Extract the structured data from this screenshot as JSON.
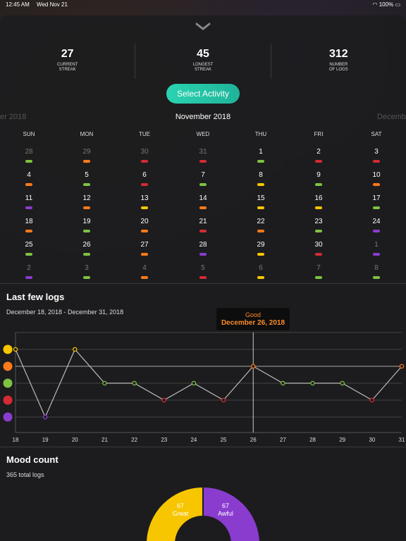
{
  "status_bar": {
    "time": "12:45 AM",
    "date": "Wed Nov 21",
    "battery": "100%"
  },
  "stats": [
    {
      "value": "27",
      "label": "CURRENT\nSTREAK"
    },
    {
      "value": "45",
      "label": "LONGEST\nSTREAK"
    },
    {
      "value": "312",
      "label": "NUMBER\nOF LOGS"
    }
  ],
  "select_activity": "Select Activity",
  "calendar": {
    "prev_month": "er 2018",
    "month": "November 2018",
    "next_month": "Decemb",
    "weekdays": [
      "SUN",
      "MON",
      "TUE",
      "WED",
      "THU",
      "FRI",
      "SAT"
    ],
    "weeks": [
      [
        {
          "d": "28",
          "c": "#7ec242",
          "dim": true
        },
        {
          "d": "29",
          "c": "#ff7a1a",
          "dim": true
        },
        {
          "d": "30",
          "c": "#d42a33",
          "dim": true
        },
        {
          "d": "31",
          "c": "#d42a33",
          "dim": true
        },
        {
          "d": "1",
          "c": "#7ec242"
        },
        {
          "d": "2",
          "c": "#d42a33"
        },
        {
          "d": "3",
          "c": "#d42a33"
        }
      ],
      [
        {
          "d": "4",
          "c": "#ff7a1a"
        },
        {
          "d": "5",
          "c": "#7ec242"
        },
        {
          "d": "6",
          "c": "#d42a33"
        },
        {
          "d": "7",
          "c": "#7ec242"
        },
        {
          "d": "8",
          "c": "#f7c600"
        },
        {
          "d": "9",
          "c": "#7ec242"
        },
        {
          "d": "10",
          "c": "#ff7a1a"
        }
      ],
      [
        {
          "d": "11",
          "c": "#8a3ccf"
        },
        {
          "d": "12",
          "c": "#ff7a1a"
        },
        {
          "d": "13",
          "c": "#f7c600"
        },
        {
          "d": "14",
          "c": "#ff7a1a"
        },
        {
          "d": "15",
          "c": "#f7c600"
        },
        {
          "d": "16",
          "c": "#f7c600"
        },
        {
          "d": "17",
          "c": "#7ec242"
        }
      ],
      [
        {
          "d": "18",
          "c": "#ff7a1a"
        },
        {
          "d": "19",
          "c": "#7ec242"
        },
        {
          "d": "20",
          "c": "#ff7a1a"
        },
        {
          "d": "21",
          "c": "#d42a33"
        },
        {
          "d": "22",
          "c": "#ff7a1a"
        },
        {
          "d": "23",
          "c": "#7ec242"
        },
        {
          "d": "24",
          "c": "#8a3ccf"
        }
      ],
      [
        {
          "d": "25",
          "c": "#7ec242"
        },
        {
          "d": "26",
          "c": "#7ec242"
        },
        {
          "d": "27",
          "c": "#ff7a1a"
        },
        {
          "d": "28",
          "c": "#8a3ccf"
        },
        {
          "d": "29",
          "c": "#f7c600"
        },
        {
          "d": "30",
          "c": "#d42a33"
        },
        {
          "d": "1",
          "c": "#8a3ccf",
          "dim": true
        }
      ],
      [
        {
          "d": "2",
          "c": "#8a3ccf",
          "dim": true
        },
        {
          "d": "3",
          "c": "#7ec242",
          "dim": true
        },
        {
          "d": "4",
          "c": "#ff7a1a",
          "dim": true
        },
        {
          "d": "5",
          "c": "#d42a33",
          "dim": true
        },
        {
          "d": "6",
          "c": "#f7c600",
          "dim": true
        },
        {
          "d": "7",
          "c": "#7ec242",
          "dim": true
        },
        {
          "d": "8",
          "c": "#7ec242",
          "dim": true
        }
      ]
    ]
  },
  "logs": {
    "title": "Last few logs",
    "range": "December 18, 2018 - December 31, 2018",
    "tooltip_mood": "Good",
    "tooltip_date": "December 26, 2018"
  },
  "chart_data": {
    "type": "line",
    "x": [
      "18",
      "19",
      "20",
      "21",
      "22",
      "23",
      "24",
      "25",
      "26",
      "27",
      "28",
      "29",
      "30",
      "31"
    ],
    "y": [
      5,
      1,
      5,
      3,
      3,
      2,
      3,
      2,
      4,
      3,
      3,
      3,
      2,
      4
    ],
    "ylim": [
      1,
      5
    ],
    "mood_levels": [
      "great",
      "good",
      "meh",
      "bad",
      "awful"
    ],
    "highlight_x": "26"
  },
  "mood_count": {
    "title": "Mood count",
    "total": "365 total logs",
    "slices": [
      {
        "value": "67",
        "label": "Great",
        "color": "#f7c600"
      },
      {
        "value": "67",
        "label": "Awful",
        "color": "#8a3ccf"
      }
    ]
  },
  "colors": {
    "great": "#f7c600",
    "good": "#ff7a1a",
    "meh": "#7ec242",
    "bad": "#d42a33",
    "awful": "#8a3ccf",
    "accent": "#2bd3b2"
  }
}
